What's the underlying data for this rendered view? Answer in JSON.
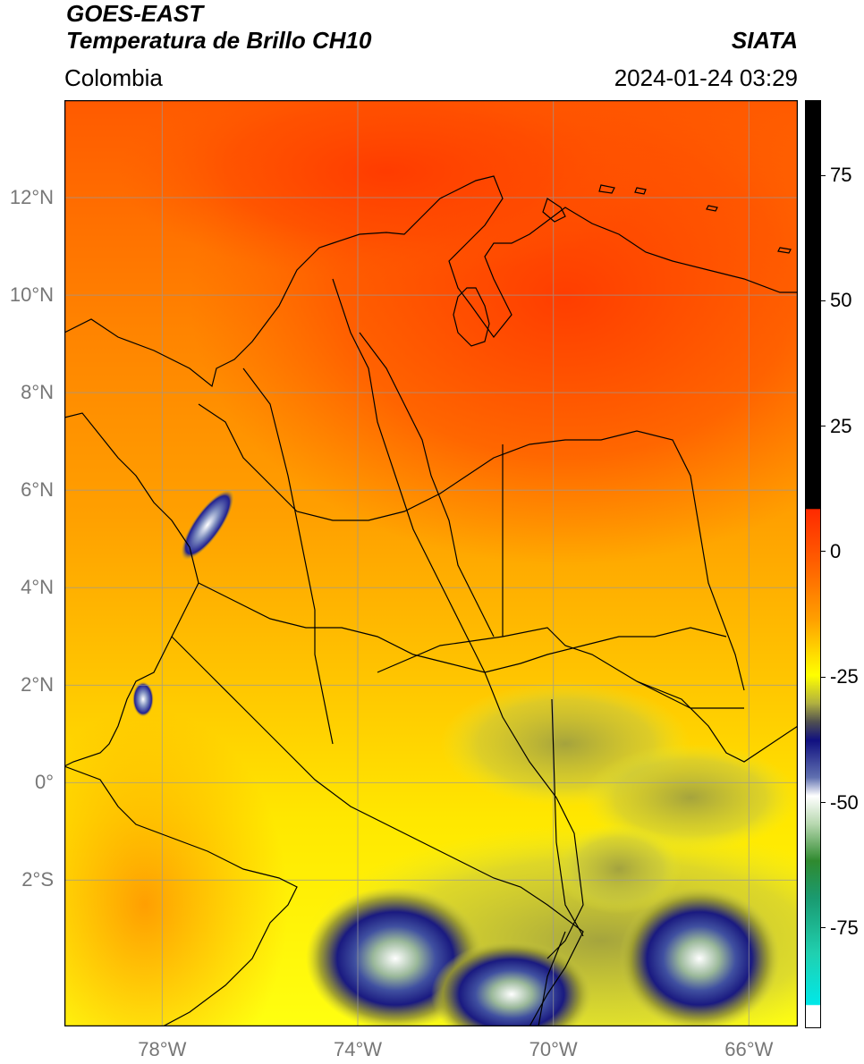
{
  "header": {
    "title_line1": "GOES-EAST",
    "title_line2": "Temperatura de Brillo CH10",
    "source": "SIATA",
    "region": "Colombia",
    "datetime": "2024-01-24 03:29"
  },
  "map": {
    "lat_labels": [
      {
        "text": "12°N",
        "lat": 12
      },
      {
        "text": "10°N",
        "lat": 10
      },
      {
        "text": "8°N",
        "lat": 8
      },
      {
        "text": "6°N",
        "lat": 6
      },
      {
        "text": "4°N",
        "lat": 4
      },
      {
        "text": "2°N",
        "lat": 2
      },
      {
        "text": "0°",
        "lat": 0
      },
      {
        "text": "2°S",
        "lat": -2
      }
    ],
    "lon_labels": [
      {
        "text": "78°W",
        "lon": -78
      },
      {
        "text": "74°W",
        "lon": -74
      },
      {
        "text": "70°W",
        "lon": -70
      },
      {
        "text": "66°W",
        "lon": -66
      }
    ],
    "extent": {
      "lon_min": -80,
      "lon_max": -65,
      "lat_min": -5,
      "lat_max": 14
    }
  },
  "colorbar": {
    "ticks": [
      {
        "text": "75",
        "value": 75
      },
      {
        "text": "50",
        "value": 50
      },
      {
        "text": "25",
        "value": 25
      },
      {
        "text": "0",
        "value": 0
      },
      {
        "text": "-25",
        "value": -25
      },
      {
        "text": "-50",
        "value": -50
      },
      {
        "text": "-75",
        "value": -75
      }
    ],
    "range": [
      -95,
      90
    ],
    "colors": {
      "black": "#000000",
      "red": "#ff3000",
      "orange": "#ff9a00",
      "yellow": "#ffff00",
      "olive": "#9a9a30",
      "navy": "#101080",
      "white": "#ffffff",
      "green": "#2f8a2f",
      "teal": "#20d0b0",
      "cyan": "#00e8e8"
    }
  }
}
